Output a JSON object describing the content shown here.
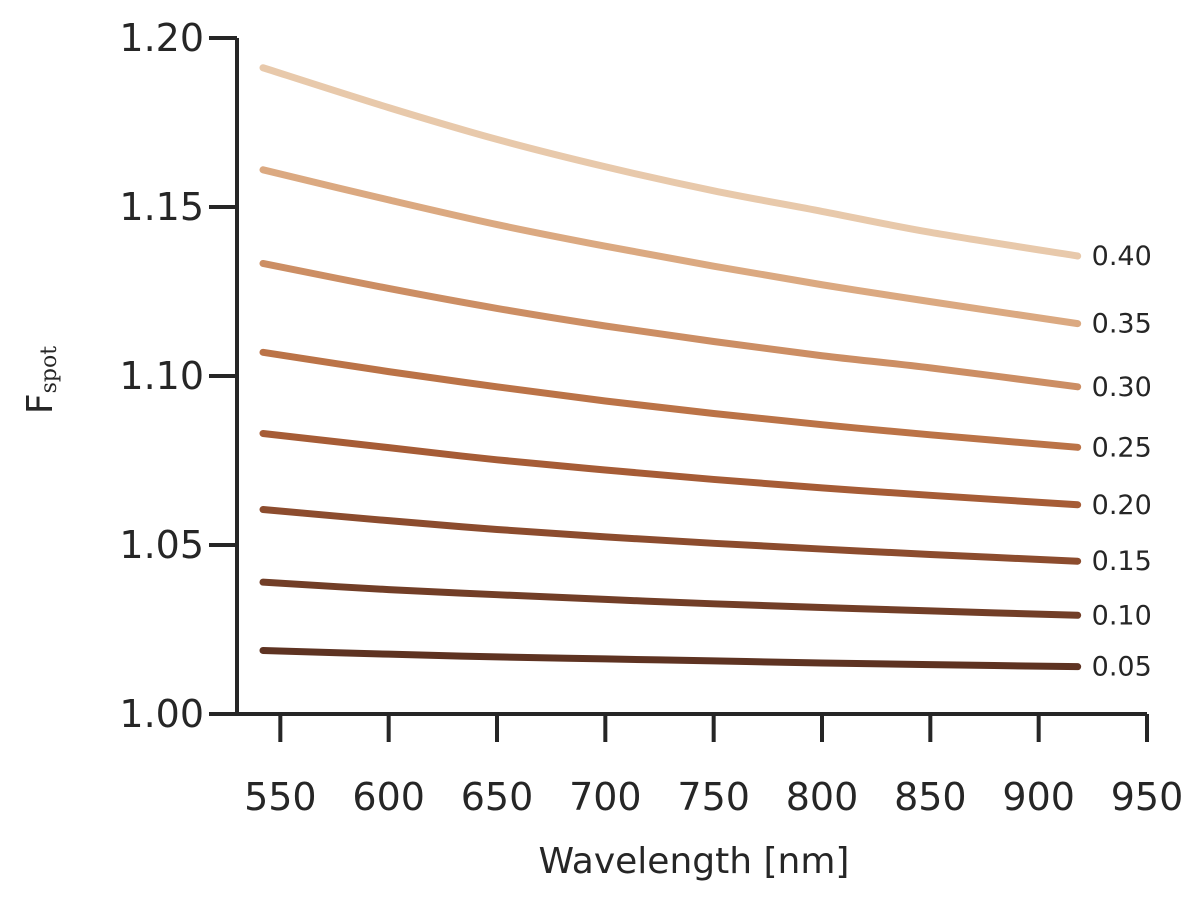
{
  "chart_data": {
    "type": "line",
    "xlabel": "Wavelength [nm]",
    "ylabel": {
      "main": "F",
      "sub": "spot"
    },
    "xlim": [
      530,
      950
    ],
    "ylim": [
      1.0,
      1.2
    ],
    "xticks": [
      "550",
      "600",
      "650",
      "700",
      "750",
      "800",
      "850",
      "900",
      "950"
    ],
    "yticks": [
      "1.00",
      "1.05",
      "1.10",
      "1.15",
      "1.20"
    ],
    "grid": false,
    "legend": "inline-right",
    "x": [
      542,
      600,
      650,
      700,
      750,
      800,
      850,
      918
    ],
    "series": [
      {
        "name": "0.05",
        "color": "#5e3322",
        "values": [
          1.0188,
          1.0177,
          1.0169,
          1.0163,
          1.0157,
          1.0151,
          1.0146,
          1.014
        ]
      },
      {
        "name": "0.10",
        "color": "#723e27",
        "values": [
          1.039,
          1.0368,
          1.0353,
          1.0339,
          1.0326,
          1.0315,
          1.0305,
          1.0292
        ]
      },
      {
        "name": "0.15",
        "color": "#8c4c2e",
        "values": [
          1.0605,
          1.0572,
          1.0546,
          1.0524,
          1.0505,
          1.0488,
          1.0472,
          1.0452
        ]
      },
      {
        "name": "0.20",
        "color": "#a65c36",
        "values": [
          1.083,
          1.0788,
          1.0752,
          1.0722,
          1.0694,
          1.0669,
          1.0647,
          1.0619
        ]
      },
      {
        "name": "0.25",
        "color": "#bb7347",
        "values": [
          1.107,
          1.1013,
          1.0968,
          1.0926,
          1.0889,
          1.0856,
          1.0826,
          1.0789
        ]
      },
      {
        "name": "0.30",
        "color": "#cc8e64",
        "values": [
          1.1333,
          1.1259,
          1.12,
          1.1148,
          1.1102,
          1.106,
          1.1024,
          1.0968
        ]
      },
      {
        "name": "0.35",
        "color": "#dba981",
        "values": [
          1.161,
          1.1521,
          1.1448,
          1.1384,
          1.1325,
          1.127,
          1.122,
          1.1155
        ]
      },
      {
        "name": "0.40",
        "color": "#e8c9ab",
        "values": [
          1.1912,
          1.1794,
          1.17,
          1.1619,
          1.1548,
          1.1487,
          1.1425,
          1.1355
        ]
      }
    ]
  }
}
